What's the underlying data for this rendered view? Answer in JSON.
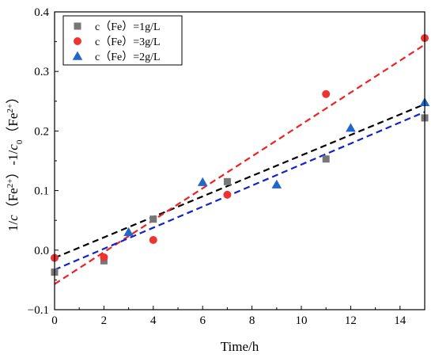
{
  "chart_data": {
    "type": "scatter",
    "title": "",
    "xlabel": "Time/h",
    "ylabel_parts": [
      "1/",
      "c",
      "（Fe",
      "2+",
      "）-1/",
      "c",
      "0",
      "（Fe",
      "2+",
      "）"
    ],
    "xlim": [
      0,
      15
    ],
    "ylim": [
      -0.1,
      0.4
    ],
    "x_ticks": [
      0,
      2,
      4,
      6,
      8,
      10,
      12,
      14
    ],
    "x_tick_labels": [
      "0",
      "2",
      "4",
      "6",
      "8",
      "10",
      "12",
      "14"
    ],
    "y_ticks": [
      -0.1,
      0.0,
      0.1,
      0.2,
      0.3,
      0.4
    ],
    "y_tick_labels": [
      "−0.1",
      "0.0",
      "0.1",
      "0.2",
      "0.3",
      "0.4"
    ],
    "grid": false,
    "legend_position": "top-left",
    "series": [
      {
        "name": "c（Fe）=1g/L",
        "marker": "square",
        "color": "#777777",
        "points": [
          [
            0,
            -0.037
          ],
          [
            2,
            -0.018
          ],
          [
            4,
            0.052
          ],
          [
            7,
            0.115
          ],
          [
            11,
            0.153
          ],
          [
            15,
            0.222
          ]
        ],
        "fit": {
          "color": "#000000",
          "y_at_xmin": -0.013,
          "y_at_xmax": 0.245
        }
      },
      {
        "name": "c（Fe）=3g/L",
        "marker": "circle",
        "color": "#ee3333",
        "points": [
          [
            0,
            -0.013
          ],
          [
            2,
            -0.012
          ],
          [
            4,
            0.017
          ],
          [
            7,
            0.093
          ],
          [
            11,
            0.262
          ],
          [
            15,
            0.356
          ]
        ],
        "fit": {
          "color": "#ee2222",
          "y_at_xmin": -0.057,
          "y_at_xmax": 0.345
        }
      },
      {
        "name": "c（Fe）=2g/L",
        "marker": "triangle",
        "color": "#2266cc",
        "points": [
          [
            3,
            0.03
          ],
          [
            6,
            0.114
          ],
          [
            9,
            0.11
          ],
          [
            12,
            0.205
          ],
          [
            15,
            0.248
          ]
        ],
        "fit": {
          "color": "#1122cc",
          "y_at_xmin": -0.033,
          "y_at_xmax": 0.232
        }
      }
    ]
  }
}
